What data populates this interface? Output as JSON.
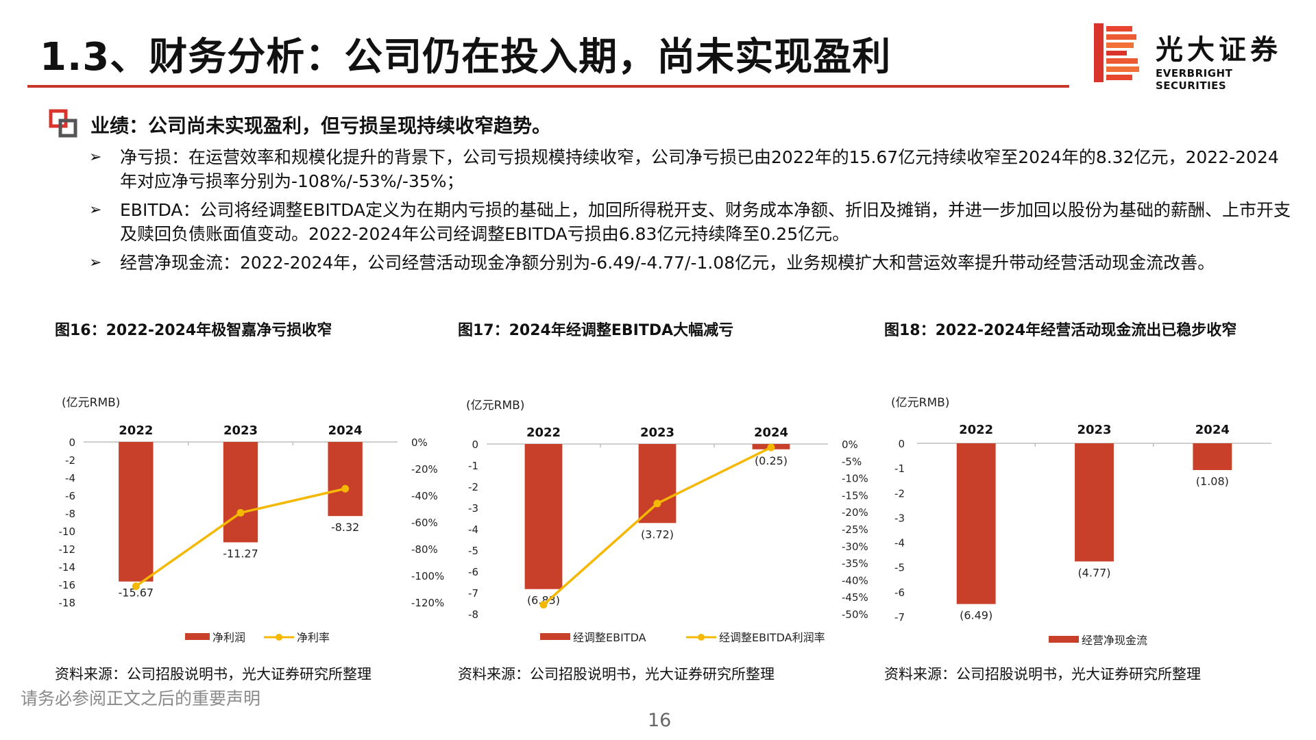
{
  "header": {
    "title": "1.3、财务分析：公司仍在投入期，尚未实现盈利",
    "brand_cn": "光大证券",
    "brand_en": "EVERBRIGHT SECURITIES",
    "brand_color": "#d9342b"
  },
  "section": {
    "heading": "业绩：公司尚未实现盈利，但亏损呈现持续收窄趋势。",
    "bullets": [
      "净亏损：在运营效率和规模化提升的背景下，公司亏损规模持续收窄，公司净亏损已由2022年的15.67亿元持续收窄至2024年的8.32亿元，2022-2024年对应净亏损率分别为-108%/-53%/-35%；",
      "EBITDA：公司将经调整EBITDA定义为在期内亏损的基础上，加回所得税开支、财务成本净额、折旧及摊销，并进一步加回以股份为基础的薪酬、上市开支及赎回负债账面值变动。2022-2024年公司经调整EBITDA亏损由6.83亿元持续降至0.25亿元。",
      "经营净现金流：2022-2024年，公司经营活动现金净额分别为-6.49/-4.77/-1.08亿元，业务规模扩大和营运效率提升带动经营活动现金流改善。"
    ]
  },
  "colors": {
    "bar": "#c9402a",
    "line": "#f5b800",
    "accent": "#c8382a"
  },
  "chart_data": [
    {
      "type": "bar",
      "title": "图16：2022-2024年极智嘉净亏损收窄",
      "unit": "(亿元RMB)",
      "categories": [
        "2022",
        "2023",
        "2024"
      ],
      "series": [
        {
          "name": "净利润",
          "type": "bar",
          "axis": "left",
          "values": [
            -15.67,
            -11.27,
            -8.32
          ],
          "labels": [
            "-15.67",
            "-11.27",
            "-8.32"
          ]
        },
        {
          "name": "净利率",
          "type": "line",
          "axis": "right",
          "values": [
            -108,
            -53,
            -35
          ]
        }
      ],
      "yleft": {
        "min": -18,
        "max": 0,
        "ticks": [
          0,
          -2,
          -4,
          -6,
          -8,
          -10,
          -12,
          -14,
          -16,
          -18
        ],
        "tick_labels": [
          "0",
          "-2",
          "-4",
          "-6",
          "-8",
          "-10",
          "-12",
          "-14",
          "-16",
          "-18"
        ]
      },
      "yright": {
        "min": -120,
        "max": 0,
        "ticks": [
          0,
          -20,
          -40,
          -60,
          -80,
          -100,
          -120
        ],
        "tick_labels": [
          "0%",
          "-20%",
          "-40%",
          "-60%",
          "-80%",
          "-100%",
          "-120%"
        ]
      },
      "source": "资料来源：公司招股说明书，光大证券研究所整理"
    },
    {
      "type": "bar",
      "title": "图17：2024年经调整EBITDA大幅减亏",
      "unit": "(亿元RMB)",
      "categories": [
        "2022",
        "2023",
        "2024"
      ],
      "series": [
        {
          "name": "经调整EBITDA",
          "type": "bar",
          "axis": "left",
          "values": [
            -6.83,
            -3.72,
            -0.25
          ],
          "labels": [
            "(6.83)",
            "(3.72)",
            "(0.25)"
          ]
        },
        {
          "name": "经调整EBITDA利润率",
          "type": "line",
          "axis": "right",
          "values": [
            -47.3,
            -17.5,
            -1.0
          ]
        }
      ],
      "yleft": {
        "min": -8,
        "max": 0,
        "ticks": [
          0,
          -1,
          -2,
          -3,
          -4,
          -5,
          -6,
          -7,
          -8
        ],
        "tick_labels": [
          "0",
          "-1",
          "-2",
          "-3",
          "-4",
          "-5",
          "-6",
          "-7",
          "-8"
        ]
      },
      "yright": {
        "min": -50,
        "max": 0,
        "ticks": [
          0,
          -5,
          -10,
          -15,
          -20,
          -25,
          -30,
          -35,
          -40,
          -45,
          -50
        ],
        "tick_labels": [
          "0%",
          "-5%",
          "-10%",
          "-15%",
          "-20%",
          "-25%",
          "-30%",
          "-35%",
          "-40%",
          "-45%",
          "-50%"
        ]
      },
      "source": "资料来源：公司招股说明书，光大证券研究所整理"
    },
    {
      "type": "bar",
      "title": "图18：2022-2024年经营活动现金流出已稳步收窄",
      "unit": "(亿元RMB)",
      "categories": [
        "2022",
        "2023",
        "2024"
      ],
      "series": [
        {
          "name": "经营净现金流",
          "type": "bar",
          "axis": "left",
          "values": [
            -6.49,
            -4.77,
            -1.08
          ],
          "labels": [
            "(6.49)",
            "(4.77)",
            "(1.08)"
          ]
        }
      ],
      "yleft": {
        "min": -7,
        "max": 0,
        "ticks": [
          0,
          -1,
          -2,
          -3,
          -4,
          -5,
          -6,
          -7
        ],
        "tick_labels": [
          "0",
          "-1",
          "-2",
          "-3",
          "-4",
          "-5",
          "-6",
          "-7"
        ]
      },
      "source": "资料来源：公司招股说明书，光大证券研究所整理"
    }
  ],
  "footer": {
    "note": "请务必参阅正文之后的重要声明",
    "page": "16"
  }
}
